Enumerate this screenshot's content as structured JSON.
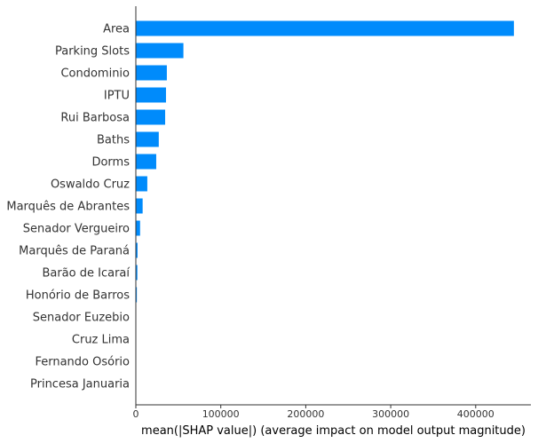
{
  "chart_data": {
    "type": "bar",
    "orientation": "horizontal",
    "categories": [
      "Area",
      "Parking Slots",
      "Condominio",
      "IPTU",
      "Rui Barbosa",
      "Baths",
      "Dorms",
      "Oswaldo Cruz",
      "Marquês de Abrantes",
      "Senador Vergueiro",
      "Marquês de Paraná",
      "Barão de Icaraí",
      "Honório de Barros",
      "Senador Euzebio",
      "Cruz Lima",
      "Fernando Osório",
      "Princesa Januaria"
    ],
    "values": [
      445000,
      56000,
      36500,
      35500,
      34500,
      27000,
      24000,
      13500,
      8000,
      5000,
      2000,
      1800,
      1200,
      400,
      300,
      250,
      200
    ],
    "xlabel": "mean(|SHAP value|) (average impact on model output magnitude)",
    "ylabel": "",
    "xlim": [
      0,
      465000
    ],
    "xticks": [
      0,
      100000,
      200000,
      300000,
      400000
    ],
    "xtick_labels": [
      "0",
      "100000",
      "200000",
      "300000",
      "400000"
    ],
    "grid": false,
    "legend": "none",
    "bar_color": "#008bfb"
  }
}
